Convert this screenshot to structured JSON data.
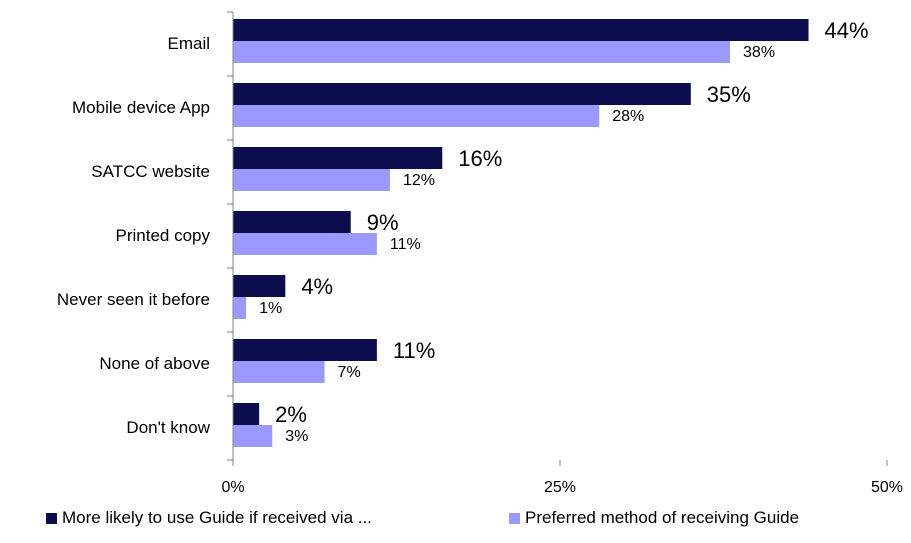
{
  "chart_data": {
    "type": "bar",
    "orientation": "horizontal",
    "categories": [
      "Email",
      "Mobile device App",
      "SATCC website",
      "Printed copy",
      "Never seen it before",
      "None of above",
      "Don't know"
    ],
    "series": [
      {
        "name": "More likely to use Guide if received via ...",
        "values": [
          44,
          35,
          16,
          9,
          4,
          11,
          2
        ],
        "labels": [
          "44%",
          "35%",
          "16%",
          "9%",
          "4%",
          "11%",
          "2%"
        ],
        "color": "#0d0d4d"
      },
      {
        "name": "Preferred method of receiving Guide",
        "values": [
          38,
          28,
          12,
          11,
          1,
          7,
          3
        ],
        "labels": [
          "38%",
          "28%",
          "12%",
          "11%",
          "1%",
          "7%",
          "3%"
        ],
        "color": "#9999ff"
      }
    ],
    "xlim": [
      0,
      50
    ],
    "xticks": [
      0,
      25,
      50
    ],
    "xtick_labels": [
      "0%",
      "25%",
      "50%"
    ],
    "grid": false,
    "legend_position": "bottom"
  }
}
